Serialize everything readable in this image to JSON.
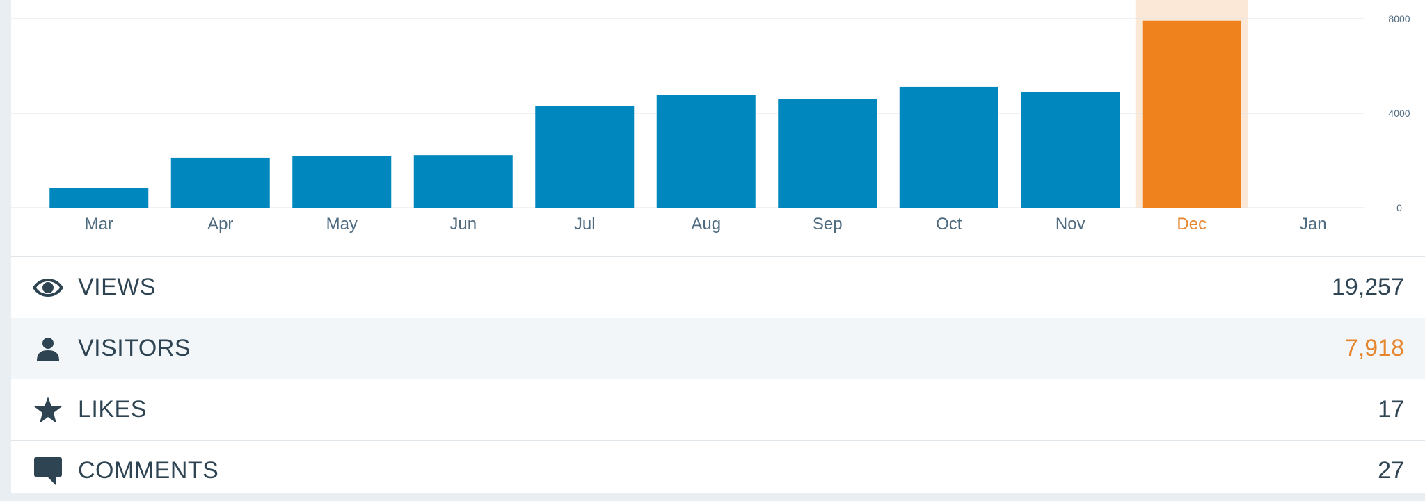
{
  "chart_data": {
    "type": "bar",
    "categories": [
      "Mar",
      "Apr",
      "May",
      "Jun",
      "Jul",
      "Aug",
      "Sep",
      "Oct",
      "Nov",
      "Dec",
      "Jan"
    ],
    "values": [
      830,
      2120,
      2180,
      2230,
      4300,
      4780,
      4600,
      5120,
      4900,
      7920,
      0
    ],
    "highlighted_category": "Dec",
    "ylim": [
      0,
      8000
    ],
    "yticks": [
      "0",
      "4000",
      "8000"
    ],
    "y_axis_side": "right",
    "grid": true,
    "colors": {
      "bar": "#0087be",
      "highlight_bar": "#f0821e",
      "highlight_band": "#fbe8d7",
      "highlight_label": "#e5852d",
      "label": "#4f6b80",
      "grid": "#dfe4e8"
    }
  },
  "stats": [
    {
      "icon": "eye-icon",
      "label": "VIEWS",
      "value": "19,257",
      "selected": false
    },
    {
      "icon": "person-icon",
      "label": "VISITORS",
      "value": "7,918",
      "selected": true
    },
    {
      "icon": "star-icon",
      "label": "LIKES",
      "value": "17",
      "selected": false
    },
    {
      "icon": "comment-icon",
      "label": "COMMENTS",
      "value": "27",
      "selected": false
    }
  ]
}
